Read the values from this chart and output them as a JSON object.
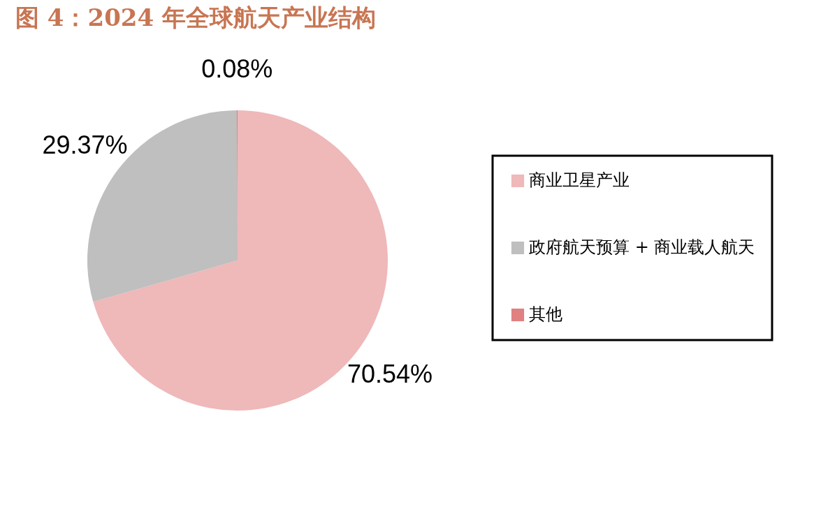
{
  "chart_data": {
    "type": "pie",
    "title": "图 4：2024 年全球航天产业结构",
    "categories": [
      "商业卫星产业",
      "政府航天预算 + 商业载人航天",
      "其他"
    ],
    "values": [
      70.54,
      29.37,
      0.08
    ],
    "colors": [
      "#efb8b9",
      "#bfbfbf",
      "#e08080"
    ],
    "value_labels": [
      "70.54%",
      "29.37%",
      "0.08%"
    ],
    "legend": "right"
  }
}
